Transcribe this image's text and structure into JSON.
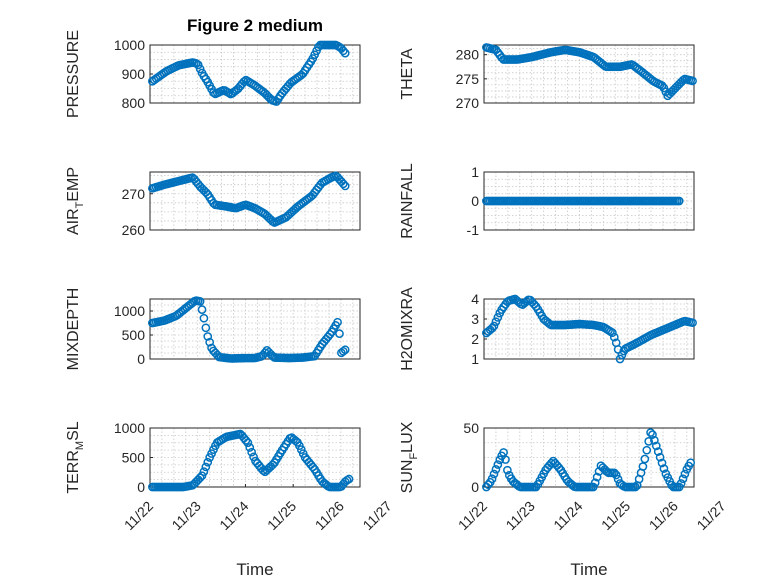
{
  "figure": {
    "title": "Figure 2 medium",
    "marker_color": "#0072BD"
  },
  "chart_data": [
    {
      "type": "scatter",
      "ylabel": "PRESSURE",
      "title": "Figure 2 medium",
      "xlabel": "",
      "xlim": [
        0,
        4.4
      ],
      "ylim": [
        800,
        1000
      ],
      "yticks": [
        800,
        900,
        1000
      ],
      "show_xticks": false,
      "keypoints": [
        [
          0.05,
          875
        ],
        [
          0.35,
          910
        ],
        [
          0.6,
          930
        ],
        [
          0.9,
          940
        ],
        [
          1.0,
          935
        ],
        [
          1.1,
          900
        ],
        [
          1.2,
          875
        ],
        [
          1.35,
          830
        ],
        [
          1.55,
          845
        ],
        [
          1.7,
          830
        ],
        [
          1.85,
          850
        ],
        [
          2.0,
          880
        ],
        [
          2.2,
          860
        ],
        [
          2.4,
          835
        ],
        [
          2.55,
          810
        ],
        [
          2.65,
          805
        ],
        [
          2.75,
          830
        ],
        [
          2.95,
          870
        ],
        [
          3.2,
          900
        ],
        [
          3.4,
          950
        ],
        [
          3.55,
          1000
        ],
        [
          3.75,
          1000
        ],
        [
          3.9,
          1000
        ],
        [
          4.0,
          990
        ],
        [
          4.1,
          970
        ]
      ]
    },
    {
      "type": "scatter",
      "ylabel": "THETA",
      "xlabel": "",
      "xlim": [
        0,
        4.4
      ],
      "ylim": [
        270,
        282
      ],
      "yticks": [
        270,
        275,
        280
      ],
      "show_xticks": false,
      "keypoints": [
        [
          0.05,
          281.5
        ],
        [
          0.25,
          281
        ],
        [
          0.4,
          279
        ],
        [
          0.7,
          279
        ],
        [
          1.0,
          279.5
        ],
        [
          1.4,
          280.5
        ],
        [
          1.7,
          281
        ],
        [
          2.0,
          280.5
        ],
        [
          2.3,
          279.5
        ],
        [
          2.55,
          277.5
        ],
        [
          2.85,
          277.5
        ],
        [
          3.1,
          278
        ],
        [
          3.3,
          276.5
        ],
        [
          3.55,
          274.5
        ],
        [
          3.75,
          273.5
        ],
        [
          3.85,
          271.5
        ],
        [
          4.0,
          273
        ],
        [
          4.2,
          275
        ],
        [
          4.4,
          274.5
        ]
      ]
    },
    {
      "type": "scatter",
      "ylabel": "AIR_TEMP",
      "ylabel_main": "AIR",
      "ylabel_sub": "T",
      "ylabel_rest": "EMP",
      "xlabel": "",
      "xlim": [
        0,
        4.4
      ],
      "ylim": [
        260,
        276
      ],
      "yticks": [
        260,
        270
      ],
      "show_xticks": false,
      "keypoints": [
        [
          0.05,
          271.5
        ],
        [
          0.3,
          272.5
        ],
        [
          0.6,
          273.5
        ],
        [
          0.9,
          274.5
        ],
        [
          1.05,
          272
        ],
        [
          1.2,
          270
        ],
        [
          1.35,
          267
        ],
        [
          1.6,
          266.5
        ],
        [
          1.8,
          266
        ],
        [
          2.0,
          267
        ],
        [
          2.2,
          266
        ],
        [
          2.4,
          264.5
        ],
        [
          2.6,
          262
        ],
        [
          2.85,
          263.5
        ],
        [
          3.1,
          266.5
        ],
        [
          3.4,
          269.5
        ],
        [
          3.6,
          273
        ],
        [
          3.8,
          274.5
        ],
        [
          3.9,
          275
        ],
        [
          4.1,
          272
        ]
      ]
    },
    {
      "type": "scatter",
      "ylabel": "RAINFALL",
      "xlabel": "",
      "xlim": [
        0,
        4.4
      ],
      "ylim": [
        -1,
        1
      ],
      "yticks": [
        -1,
        0,
        1
      ],
      "show_xticks": false,
      "keypoints": [
        [
          0.05,
          0
        ],
        [
          4.1,
          0
        ]
      ]
    },
    {
      "type": "scatter",
      "ylabel": "MIXDEPTH",
      "xlabel": "",
      "xlim": [
        0,
        4.4
      ],
      "ylim": [
        0,
        1250
      ],
      "yticks": [
        0,
        500,
        1000
      ],
      "show_xticks": false,
      "keypoints": [
        [
          0.05,
          750
        ],
        [
          0.3,
          800
        ],
        [
          0.55,
          900
        ],
        [
          0.8,
          1100
        ],
        [
          0.95,
          1220
        ],
        [
          1.05,
          1200
        ],
        [
          1.12,
          900
        ],
        [
          1.2,
          500
        ],
        [
          1.3,
          200
        ],
        [
          1.45,
          40
        ],
        [
          1.7,
          10
        ],
        [
          2.0,
          20
        ],
        [
          2.2,
          20
        ],
        [
          2.35,
          60
        ],
        [
          2.45,
          180
        ],
        [
          2.6,
          30
        ],
        [
          2.9,
          20
        ],
        [
          3.2,
          30
        ],
        [
          3.45,
          60
        ],
        [
          3.6,
          300
        ],
        [
          3.8,
          550
        ],
        [
          3.95,
          800
        ],
        [
          4.0,
          120
        ],
        [
          4.1,
          200
        ]
      ]
    },
    {
      "type": "scatter",
      "ylabel": "H2OMIXRA",
      "xlabel": "",
      "xlim": [
        0,
        4.4
      ],
      "ylim": [
        1,
        4
      ],
      "yticks": [
        1,
        2,
        3,
        4
      ],
      "show_xticks": false,
      "keypoints": [
        [
          0.05,
          2.3
        ],
        [
          0.2,
          2.6
        ],
        [
          0.35,
          3.4
        ],
        [
          0.5,
          3.9
        ],
        [
          0.65,
          4.0
        ],
        [
          0.8,
          3.7
        ],
        [
          0.95,
          4.0
        ],
        [
          1.1,
          3.6
        ],
        [
          1.25,
          3.0
        ],
        [
          1.4,
          2.7
        ],
        [
          1.7,
          2.7
        ],
        [
          2.0,
          2.75
        ],
        [
          2.3,
          2.7
        ],
        [
          2.5,
          2.6
        ],
        [
          2.7,
          2.3
        ],
        [
          2.8,
          1.6
        ],
        [
          2.85,
          1.0
        ],
        [
          2.95,
          1.5
        ],
        [
          3.2,
          1.8
        ],
        [
          3.5,
          2.2
        ],
        [
          3.8,
          2.5
        ],
        [
          4.0,
          2.7
        ],
        [
          4.2,
          2.9
        ],
        [
          4.4,
          2.8
        ]
      ]
    },
    {
      "type": "scatter",
      "ylabel": "TERR_MSL",
      "ylabel_main": "TERR",
      "ylabel_sub": "M",
      "ylabel_rest": "SL",
      "xlabel": "Time",
      "xlim": [
        0,
        4.4
      ],
      "ylim": [
        0,
        1000
      ],
      "yticks": [
        0,
        500,
        1000
      ],
      "show_xticks": true,
      "xtick_values": [
        0,
        1,
        2,
        3,
        4,
        5
      ],
      "xtick_labels": [
        "11/22",
        "11/23",
        "11/24",
        "11/25",
        "11/26",
        "11/27"
      ],
      "keypoints": [
        [
          0.05,
          0
        ],
        [
          0.3,
          0
        ],
        [
          0.7,
          0
        ],
        [
          0.9,
          30
        ],
        [
          1.1,
          200
        ],
        [
          1.25,
          500
        ],
        [
          1.4,
          750
        ],
        [
          1.6,
          850
        ],
        [
          1.9,
          900
        ],
        [
          2.05,
          750
        ],
        [
          2.2,
          450
        ],
        [
          2.4,
          250
        ],
        [
          2.6,
          400
        ],
        [
          2.75,
          600
        ],
        [
          2.95,
          850
        ],
        [
          3.1,
          750
        ],
        [
          3.25,
          500
        ],
        [
          3.45,
          300
        ],
        [
          3.6,
          100
        ],
        [
          3.75,
          0
        ],
        [
          4.0,
          0
        ],
        [
          4.1,
          100
        ],
        [
          4.2,
          150
        ]
      ]
    },
    {
      "type": "scatter",
      "ylabel": "SUN_FLUX",
      "ylabel_main": "SUN",
      "ylabel_sub": "F",
      "ylabel_rest": "LUX",
      "xlabel": "Time",
      "xlim": [
        0,
        4.4
      ],
      "ylim": [
        0,
        50
      ],
      "yticks": [
        0,
        50
      ],
      "show_xticks": true,
      "xtick_values": [
        0,
        1,
        2,
        3,
        4,
        5
      ],
      "xtick_labels": [
        "11/22",
        "11/23",
        "11/24",
        "11/25",
        "11/26",
        "11/27"
      ],
      "keypoints": [
        [
          0.05,
          0
        ],
        [
          0.15,
          5
        ],
        [
          0.25,
          15
        ],
        [
          0.35,
          25
        ],
        [
          0.42,
          30
        ],
        [
          0.5,
          12
        ],
        [
          0.6,
          5
        ],
        [
          0.75,
          0
        ],
        [
          1.1,
          0
        ],
        [
          1.3,
          15
        ],
        [
          1.45,
          22
        ],
        [
          1.6,
          15
        ],
        [
          1.75,
          5
        ],
        [
          1.9,
          0
        ],
        [
          2.3,
          0
        ],
        [
          2.45,
          18
        ],
        [
          2.6,
          12
        ],
        [
          2.75,
          12
        ],
        [
          2.85,
          3
        ],
        [
          2.95,
          0
        ],
        [
          3.2,
          0
        ],
        [
          3.35,
          20
        ],
        [
          3.5,
          48
        ],
        [
          3.65,
          30
        ],
        [
          3.8,
          12
        ],
        [
          3.95,
          0
        ],
        [
          4.1,
          0
        ],
        [
          4.25,
          15
        ],
        [
          4.35,
          22
        ]
      ]
    }
  ]
}
